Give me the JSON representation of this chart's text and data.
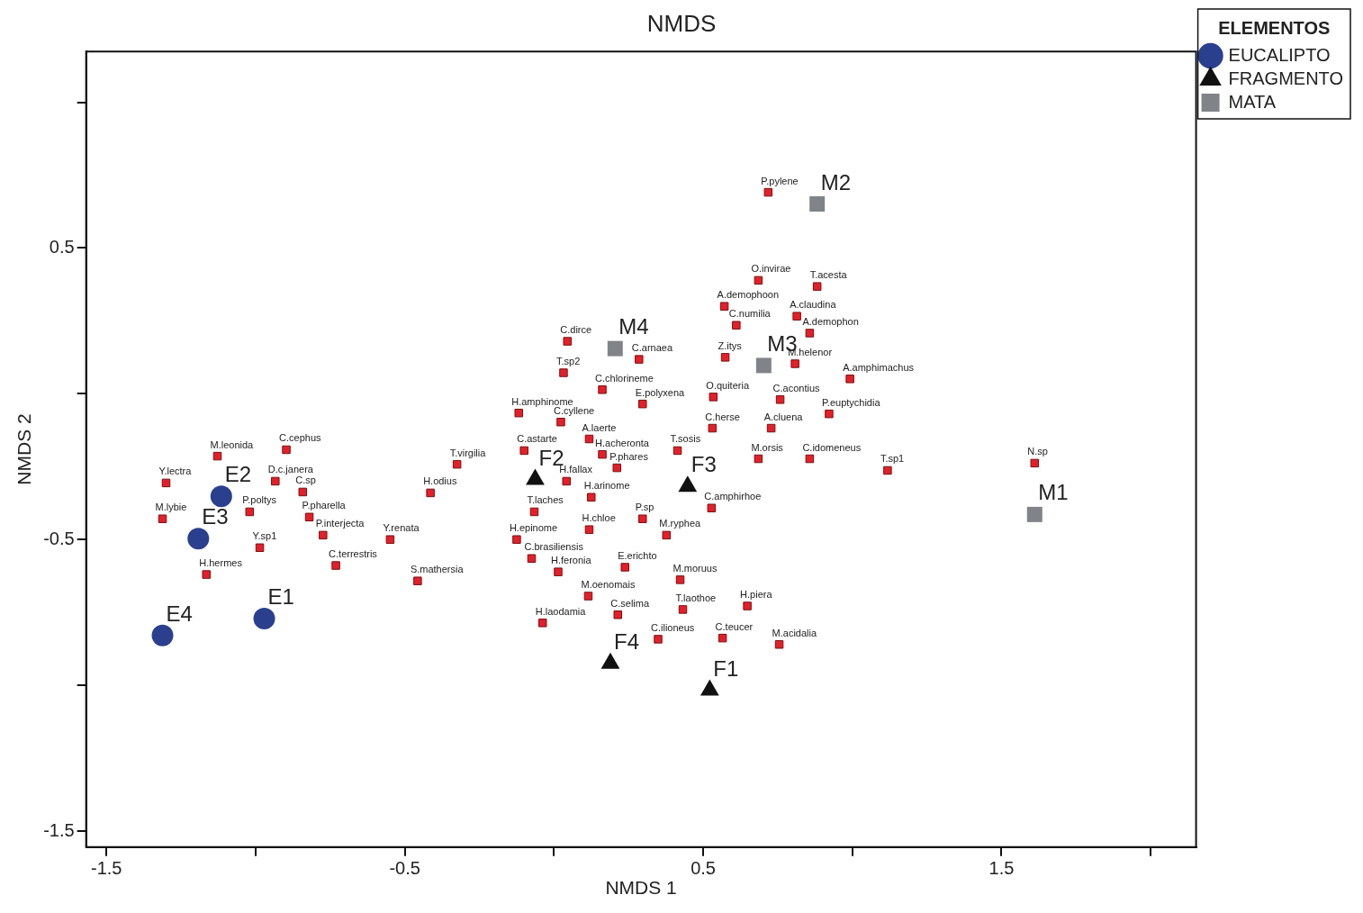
{
  "chart_data": {
    "type": "scatter",
    "title": "NMDS",
    "xlabel": "NMDS 1",
    "ylabel": "NMDS 2",
    "legend_title": "ELEMENTOS",
    "legend": "top right",
    "grid": false,
    "xlim": [
      -1.568,
      2.152
    ],
    "ylim": [
      -1.555,
      1.174
    ],
    "xticks": [
      -1.5,
      {
        "value": -1,
        "label": null
      },
      -0.5,
      {
        "value": 0,
        "label": null
      },
      0.5,
      {
        "value": 1,
        "label": null
      },
      1.5,
      {
        "value": 2,
        "label": null
      }
    ],
    "yticks": [
      -1.5,
      {
        "value": -1,
        "label": null
      },
      -0.5,
      {
        "value": 0,
        "label": null
      },
      0.5,
      {
        "value": 1,
        "label": null
      }
    ],
    "series": [
      {
        "color": "#e3202a",
        "marker": "square",
        "x": [
          0.718,
          0.685,
          0.882,
          0.571,
          0.814,
          0.611,
          0.857,
          0.574,
          0.808,
          0.992,
          0.758,
          0.534,
          0.922,
          0.531,
          0.728,
          0.685,
          0.857,
          1.118,
          1.611,
          0.045,
          0.285,
          0.032,
          0.162,
          0.297,
          -0.118,
          0.023,
          0.118,
          0.162,
          -0.1,
          0.211,
          0.414,
          0.042,
          0.125,
          -0.066,
          0.528,
          0.297,
          0.118,
          0.377,
          -0.125,
          -0.075,
          0.014,
          0.238,
          0.423,
          0.115,
          0.648,
          0.214,
          0.432,
          -0.038,
          0.349,
          0.565,
          0.755,
          -0.325,
          -0.414,
          -0.549,
          -0.457,
          -0.731,
          -0.774,
          -0.82,
          -0.842,
          -0.934,
          -0.897,
          -1.128,
          -1.02,
          -0.986,
          -1.165,
          -1.3,
          -1.312
        ],
        "values": [
          0.691,
          0.389,
          0.368,
          0.3,
          0.266,
          0.235,
          0.208,
          0.125,
          0.103,
          0.051,
          -0.02,
          -0.011,
          -0.069,
          -0.118,
          -0.118,
          -0.223,
          -0.223,
          -0.263,
          -0.238,
          0.18,
          0.118,
          0.072,
          0.014,
          -0.035,
          -0.066,
          -0.097,
          -0.155,
          -0.208,
          -0.195,
          -0.254,
          -0.195,
          -0.3,
          -0.355,
          -0.405,
          -0.392,
          -0.429,
          -0.466,
          -0.485,
          -0.5,
          -0.565,
          -0.611,
          -0.595,
          -0.638,
          -0.694,
          -0.728,
          -0.758,
          -0.74,
          -0.786,
          -0.842,
          -0.838,
          -0.86,
          -0.242,
          -0.34,
          -0.5,
          -0.642,
          -0.589,
          -0.485,
          -0.423,
          -0.337,
          -0.3,
          -0.192,
          -0.214,
          -0.405,
          -0.528,
          -0.62,
          -0.306,
          -0.429
        ],
        "value_labels": [
          "P.pylene",
          "O.invirae",
          "T.acesta",
          "A.demophoon",
          "A.claudina",
          "C.numilia",
          "A.demophon",
          "Z.itys",
          "M.helenor",
          "A.amphimachus",
          "C.acontius",
          "O.quiteria",
          "P.euptychidia",
          "C.herse",
          "A.cluena",
          "M.orsis",
          "C.idomeneus",
          "T.sp1",
          "N.sp",
          "C.dirce",
          "C.arnaea",
          "T.sp2",
          "C.chlorineme",
          "E.polyxena",
          "H.amphinome",
          "C.cyllene",
          "A.laerte",
          "H.acheronta",
          "C.astarte",
          "P.phares",
          "T.sosis",
          "H.fallax",
          "H.arinome",
          "T.laches",
          "C.amphirhoe",
          "P.sp",
          "H.chloe",
          "M.ryphea",
          "H.epinome",
          "C.brasiliensis",
          "H.feronia",
          "E.erichto",
          "M.moruus",
          "M.oenomais",
          "H.piera",
          "C.selima",
          "T.laothoe",
          "H.laodamia",
          "C.ilioneus",
          "C.teucer",
          "M.acidalia",
          "T.virgilia",
          "H.odius",
          "Y.renata",
          "S.mathersia",
          "C.terrestris",
          "P.interjecta",
          "P.pharella",
          "C.sp",
          "D.c.janera",
          "C.cephus",
          "M.leonida",
          "P.poltys",
          "Y.sp1",
          "H.hermes",
          "Y.lectra",
          "M.lybie"
        ]
      },
      {
        "name": "EUCALIPTO",
        "color": "#2b3f8f",
        "marker": "circle",
        "x": [
          -0.971,
          -1.115,
          -1.192,
          -1.312
        ],
        "values": [
          -0.771,
          -0.352,
          -0.497,
          -0.829
        ],
        "value_labels": [
          "E1",
          "E2",
          "E3",
          "E4"
        ]
      },
      {
        "name": "FRAGMENTO",
        "color": "#111111",
        "marker": "triangle",
        "x": [
          0.522,
          -0.063,
          0.448,
          0.189
        ],
        "values": [
          -1.017,
          -0.294,
          -0.318,
          -0.925
        ],
        "value_labels": [
          "F1",
          "F2",
          "F3",
          "F4"
        ]
      },
      {
        "name": "MATA",
        "color": "#808488",
        "marker": "square",
        "x": [
          1.611,
          0.882,
          0.703,
          0.205
        ],
        "values": [
          -0.414,
          0.651,
          0.097,
          0.155
        ],
        "value_labels": [
          "M1",
          "M2",
          "M3",
          "M4"
        ]
      }
    ]
  }
}
